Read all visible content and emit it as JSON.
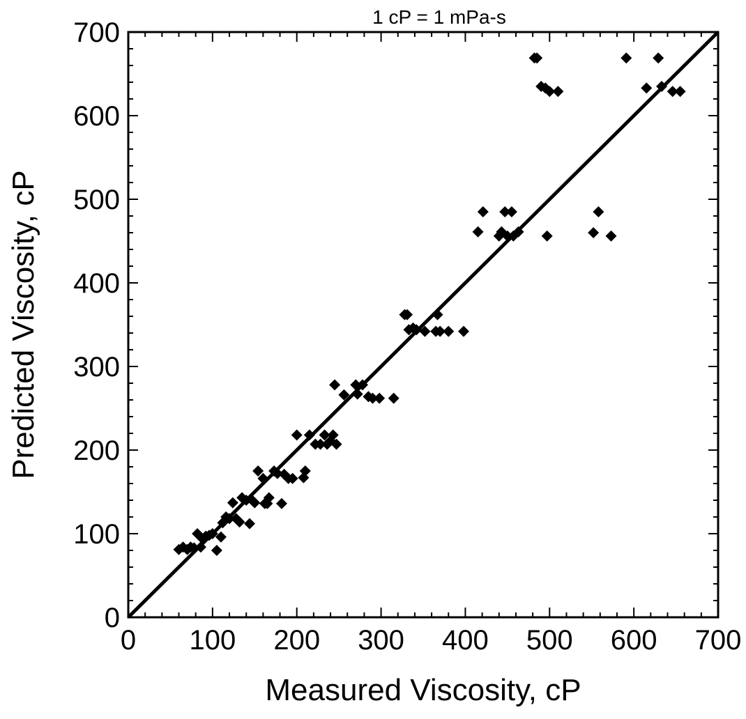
{
  "chart_data": {
    "type": "scatter",
    "title": "",
    "annotation": "1 cP = 1 mPa-s",
    "xlabel": "Measured Viscosity, cP",
    "ylabel": "Predicted Viscosity, cP",
    "xlim": [
      0,
      700
    ],
    "ylim": [
      0,
      700
    ],
    "xticks": [
      "0",
      "100",
      "200",
      "300",
      "400",
      "500",
      "600",
      "700"
    ],
    "yticks": [
      "0",
      "100",
      "200",
      "300",
      "400",
      "500",
      "600",
      "700"
    ],
    "grid": false,
    "legend": "none",
    "reference_line": {
      "x": [
        0,
        700
      ],
      "y": [
        0,
        700
      ]
    },
    "marker": "diamond",
    "colors": {
      "marker": "#000000",
      "line": "#000000"
    },
    "points": [
      [
        60,
        81
      ],
      [
        65,
        84
      ],
      [
        70,
        81
      ],
      [
        74,
        84
      ],
      [
        78,
        83
      ],
      [
        82,
        100
      ],
      [
        86,
        84
      ],
      [
        88,
        94
      ],
      [
        92,
        97
      ],
      [
        96,
        98
      ],
      [
        100,
        100
      ],
      [
        105,
        80
      ],
      [
        110,
        96
      ],
      [
        112,
        113
      ],
      [
        116,
        120
      ],
      [
        120,
        118
      ],
      [
        124,
        137
      ],
      [
        128,
        118
      ],
      [
        132,
        114
      ],
      [
        135,
        143
      ],
      [
        140,
        140
      ],
      [
        144,
        112
      ],
      [
        147,
        140
      ],
      [
        150,
        137
      ],
      [
        154,
        175
      ],
      [
        160,
        166
      ],
      [
        162,
        136
      ],
      [
        165,
        136
      ],
      [
        167,
        143
      ],
      [
        173,
        175
      ],
      [
        177,
        172
      ],
      [
        182,
        136
      ],
      [
        185,
        171
      ],
      [
        190,
        166
      ],
      [
        195,
        166
      ],
      [
        200,
        218
      ],
      [
        208,
        167
      ],
      [
        210,
        175
      ],
      [
        215,
        218
      ],
      [
        222,
        207
      ],
      [
        228,
        207
      ],
      [
        233,
        218
      ],
      [
        236,
        207
      ],
      [
        240,
        211
      ],
      [
        243,
        218
      ],
      [
        245,
        278
      ],
      [
        247,
        207
      ],
      [
        256,
        266
      ],
      [
        270,
        278
      ],
      [
        272,
        267
      ],
      [
        278,
        278
      ],
      [
        285,
        264
      ],
      [
        290,
        262
      ],
      [
        298,
        262
      ],
      [
        315,
        262
      ],
      [
        328,
        362
      ],
      [
        331,
        362
      ],
      [
        333,
        344
      ],
      [
        338,
        346
      ],
      [
        342,
        344
      ],
      [
        352,
        342
      ],
      [
        365,
        342
      ],
      [
        367,
        362
      ],
      [
        370,
        342
      ],
      [
        380,
        342
      ],
      [
        398,
        342
      ],
      [
        415,
        461
      ],
      [
        421,
        485
      ],
      [
        440,
        456
      ],
      [
        443,
        461
      ],
      [
        447,
        485
      ],
      [
        450,
        456
      ],
      [
        455,
        485
      ],
      [
        457,
        456
      ],
      [
        463,
        461
      ],
      [
        497,
        456
      ],
      [
        482,
        669
      ],
      [
        485,
        669
      ],
      [
        490,
        635
      ],
      [
        495,
        633
      ],
      [
        500,
        629
      ],
      [
        510,
        629
      ],
      [
        552,
        460
      ],
      [
        558,
        485
      ],
      [
        573,
        456
      ],
      [
        591,
        669
      ],
      [
        615,
        633
      ],
      [
        629,
        669
      ],
      [
        633,
        635
      ],
      [
        646,
        629
      ],
      [
        655,
        629
      ]
    ]
  }
}
